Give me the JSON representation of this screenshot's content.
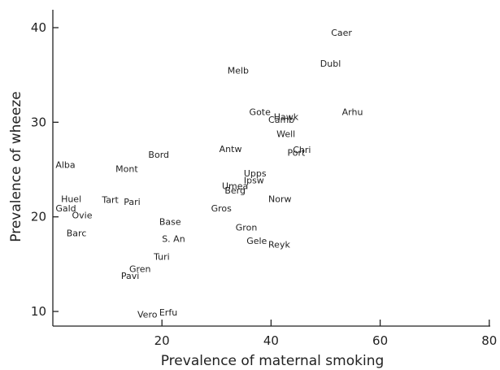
{
  "chart_data": {
    "type": "scatter",
    "xlabel": "Prevalence of maternal smoking",
    "ylabel": "Prevalence of wheeze",
    "xlim": [
      0,
      80
    ],
    "ylim": [
      8.5,
      42
    ],
    "xticks": [
      20,
      40,
      60,
      80
    ],
    "yticks": [
      10,
      20,
      30,
      40
    ],
    "grid": false,
    "points": [
      {
        "label": "Caer",
        "x": 51,
        "y": 39.5
      },
      {
        "label": "Dubl",
        "x": 49,
        "y": 36.2
      },
      {
        "label": "Melb",
        "x": 32,
        "y": 35.5
      },
      {
        "label": "Arhu",
        "x": 53,
        "y": 31.1
      },
      {
        "label": "Gote",
        "x": 36,
        "y": 31.1
      },
      {
        "label": "Hawk",
        "x": 40.5,
        "y": 30.6
      },
      {
        "label": "Camb",
        "x": 39.5,
        "y": 30.3
      },
      {
        "label": "Well",
        "x": 41,
        "y": 28.8
      },
      {
        "label": "Chri",
        "x": 44,
        "y": 27.1
      },
      {
        "label": "Port",
        "x": 43,
        "y": 26.8
      },
      {
        "label": "Antw",
        "x": 30.5,
        "y": 27.2
      },
      {
        "label": "Bord",
        "x": 17.5,
        "y": 26.6
      },
      {
        "label": "Alba",
        "x": 0.5,
        "y": 25.5
      },
      {
        "label": "Mont",
        "x": 11.5,
        "y": 25.1
      },
      {
        "label": "Upps",
        "x": 35,
        "y": 24.6
      },
      {
        "label": "Ipsw",
        "x": 35,
        "y": 23.9
      },
      {
        "label": "Umea",
        "x": 31,
        "y": 23.3
      },
      {
        "label": "Berg",
        "x": 31.5,
        "y": 22.8
      },
      {
        "label": "Norw",
        "x": 39.5,
        "y": 21.9
      },
      {
        "label": "Huel",
        "x": 1.5,
        "y": 21.9
      },
      {
        "label": "Tart",
        "x": 9,
        "y": 21.8
      },
      {
        "label": "Pari",
        "x": 13,
        "y": 21.6
      },
      {
        "label": "Gald",
        "x": 0.5,
        "y": 20.9
      },
      {
        "label": "Gros",
        "x": 29,
        "y": 20.9
      },
      {
        "label": "Ovie",
        "x": 3.5,
        "y": 20.2
      },
      {
        "label": "Base",
        "x": 19.5,
        "y": 19.5
      },
      {
        "label": "Gron",
        "x": 33.5,
        "y": 18.9
      },
      {
        "label": "Barc",
        "x": 2.5,
        "y": 18.3
      },
      {
        "label": "S. An",
        "x": 20,
        "y": 17.7
      },
      {
        "label": "Gele",
        "x": 35.5,
        "y": 17.5
      },
      {
        "label": "Reyk",
        "x": 39.5,
        "y": 17.1
      },
      {
        "label": "Turi",
        "x": 18.5,
        "y": 15.8
      },
      {
        "label": "Gren",
        "x": 14,
        "y": 14.5
      },
      {
        "label": "Pavi",
        "x": 12.5,
        "y": 13.8
      },
      {
        "label": "Vero",
        "x": 15.5,
        "y": 9.7
      },
      {
        "label": "Erfu",
        "x": 19.5,
        "y": 9.9
      }
    ]
  }
}
